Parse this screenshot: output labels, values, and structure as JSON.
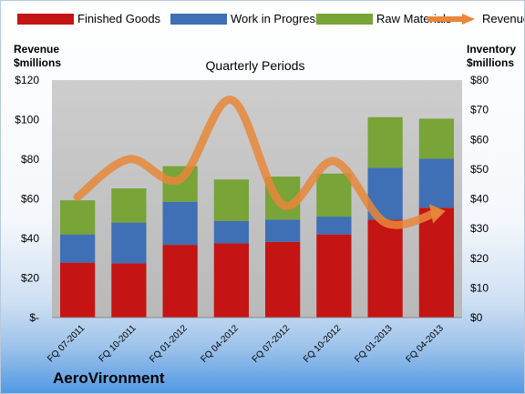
{
  "legend": {
    "finished_goods": "Finished Goods",
    "work_in_progress": "Work in Progress",
    "raw_materials": "Raw Materials",
    "revenue": "Revenue"
  },
  "left_axis_title": [
    "Revenue",
    "$millions"
  ],
  "right_axis_title": [
    "Inventory",
    "$millions"
  ],
  "brand": "AeroVironment",
  "colors": {
    "finished_goods": "#c41414",
    "work_in_progress": "#3f6fb5",
    "raw_materials": "#78a438",
    "revenue": "#e8873a",
    "plot_bg_top": "#cdcdcd",
    "plot_bg_bottom": "#b8b8b8"
  },
  "chart_data": {
    "type": "bar",
    "stacked": true,
    "title": "Quarterly Periods",
    "categories": [
      "FQ 07-2011",
      "FQ 10-2011",
      "FQ 01-2012",
      "FQ 04-2012",
      "FQ 07-2012",
      "FQ 10-2012",
      "FQ 01-2013",
      "FQ 04-2013"
    ],
    "series": [
      {
        "name": "Finished Goods",
        "axis": "right",
        "values": [
          18.5,
          18.3,
          24.5,
          25.0,
          25.5,
          28.0,
          33.0,
          37.0
        ]
      },
      {
        "name": "Work in Progress",
        "axis": "right",
        "values": [
          9.5,
          13.7,
          14.5,
          7.5,
          7.5,
          6.0,
          17.5,
          16.5
        ]
      },
      {
        "name": "Raw Materials",
        "axis": "right",
        "values": [
          11.5,
          11.5,
          12.0,
          14.0,
          14.5,
          14.5,
          17.0,
          13.5
        ]
      },
      {
        "name": "Revenue",
        "axis": "left",
        "type": "line",
        "smooth": true,
        "values": [
          61,
          80,
          70,
          110,
          57,
          79,
          48,
          53
        ]
      }
    ],
    "y_left": {
      "title": "Revenue $millions",
      "min": 0,
      "max": 120,
      "step": 20,
      "tick_labels": [
        "$-",
        "$20",
        "$40",
        "$60",
        "$80",
        "$100",
        "$120"
      ]
    },
    "y_right": {
      "title": "Inventory $millions",
      "min": 0,
      "max": 80,
      "step": 10,
      "tick_labels": [
        "$0",
        "$10",
        "$20",
        "$30",
        "$40",
        "$50",
        "$60",
        "$70",
        "$80"
      ]
    },
    "legend_position": "top",
    "grid": false
  }
}
